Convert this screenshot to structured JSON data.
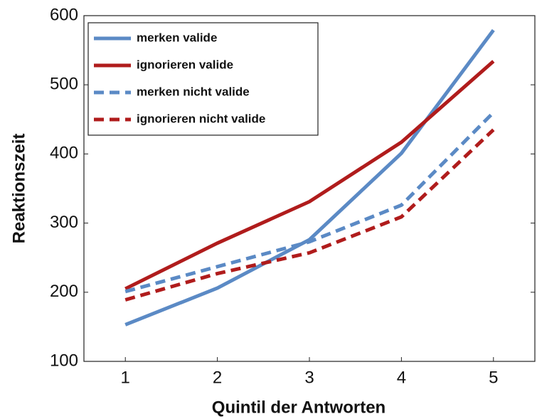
{
  "chart_data": {
    "type": "line",
    "x_label": "Quintil der Antworten",
    "y_label": "Reaktionszeit",
    "x": [
      1,
      2,
      3,
      4,
      5
    ],
    "xlim": [
      0.55,
      5.45
    ],
    "xticks": [
      1,
      2,
      3,
      4,
      5
    ],
    "ylim": [
      100,
      600
    ],
    "yticks": [
      100,
      200,
      300,
      400,
      500,
      600
    ],
    "legend": "upper left",
    "series": [
      {
        "name": "merken valide",
        "color": "#5b8ac5",
        "linestyle": "solid",
        "values": [
          153,
          206,
          276,
          401,
          579
        ]
      },
      {
        "name": "ignorieren valide",
        "color": "#b01c1c",
        "linestyle": "solid",
        "values": [
          205,
          271,
          331,
          417,
          534
        ]
      },
      {
        "name": "merken nicht valide",
        "color": "#5b8ac5",
        "linestyle": "dashed",
        "values": [
          201,
          237,
          273,
          326,
          460
        ]
      },
      {
        "name": "ignorieren nicht valide",
        "color": "#b01c1c",
        "linestyle": "dashed",
        "values": [
          189,
          227,
          257,
          309,
          435
        ]
      }
    ]
  }
}
